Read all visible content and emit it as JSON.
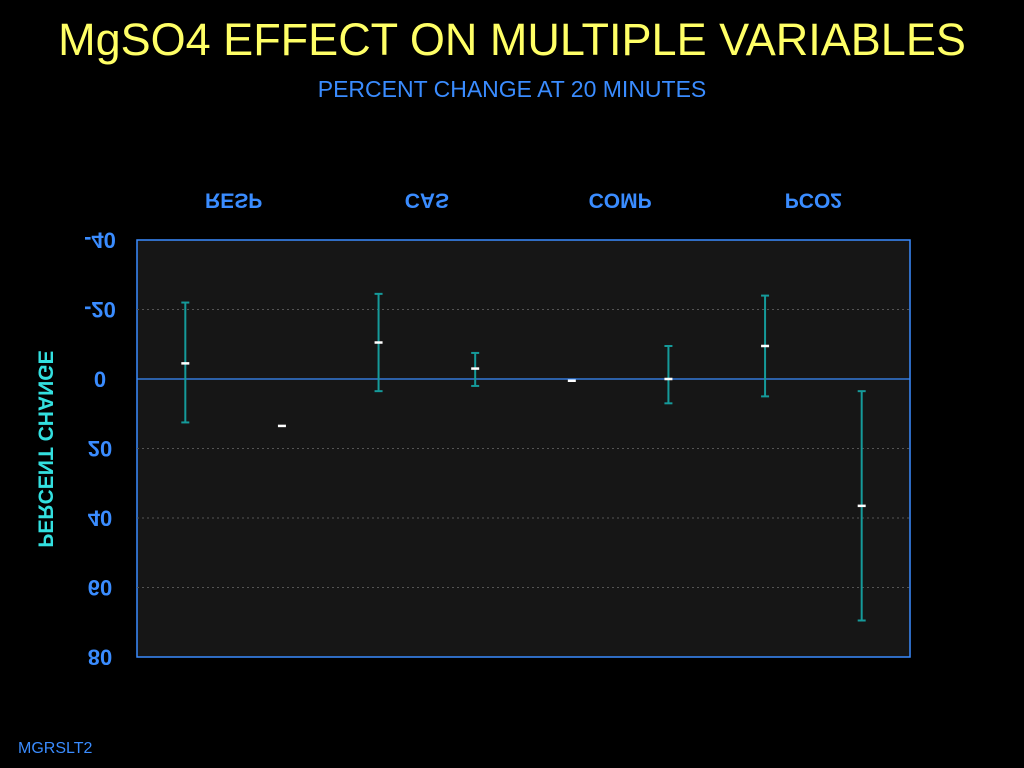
{
  "slide": {
    "title": "MgSO4 EFFECT ON MULTIPLE VARIABLES",
    "subtitle": "PERCENT CHANGE AT 20 MINUTES",
    "footer": "MGRSLT2"
  },
  "colors": {
    "background": "#000000",
    "plot_background": "#161616",
    "title": "#ffff66",
    "accent": "#3a8cff",
    "ylabel": "#33e0e0",
    "error_bar": "#159a9a",
    "mean_marker": "#ffffff",
    "grid": "#555555"
  },
  "chart_data": {
    "type": "scatter",
    "title": "",
    "xlabel": "",
    "ylabel": "PERCENT CHANGE",
    "ylabel_mirrored": true,
    "top_category_labels": [
      "RESP",
      "CAS",
      "COMP",
      "PCO2"
    ],
    "top_labels_mirrored": true,
    "yaxis": {
      "inverted": true,
      "ylim": [
        -40,
        80
      ],
      "ticks": [
        -40,
        -20,
        0,
        20,
        40,
        60,
        80
      ],
      "tick_labels": [
        "-40",
        "-20",
        "0",
        "20",
        "40",
        "60",
        "80"
      ],
      "tick_labels_mirrored": true
    },
    "zero_line": 0,
    "grid": true,
    "points": [
      {
        "mean": -4.5,
        "low": -22,
        "high": 12.5
      },
      {
        "mean": 13.5,
        "low": null,
        "high": null
      },
      {
        "mean": -10.5,
        "low": -24.5,
        "high": 3.5
      },
      {
        "mean": -3,
        "low": -7.5,
        "high": 2
      },
      {
        "mean": 0.5,
        "low": null,
        "high": null
      },
      {
        "mean": 0,
        "low": -9.5,
        "high": 7
      },
      {
        "mean": -9.5,
        "low": -24,
        "high": 5
      },
      {
        "mean": 36.5,
        "low": 3.5,
        "high": 69.5
      }
    ]
  }
}
